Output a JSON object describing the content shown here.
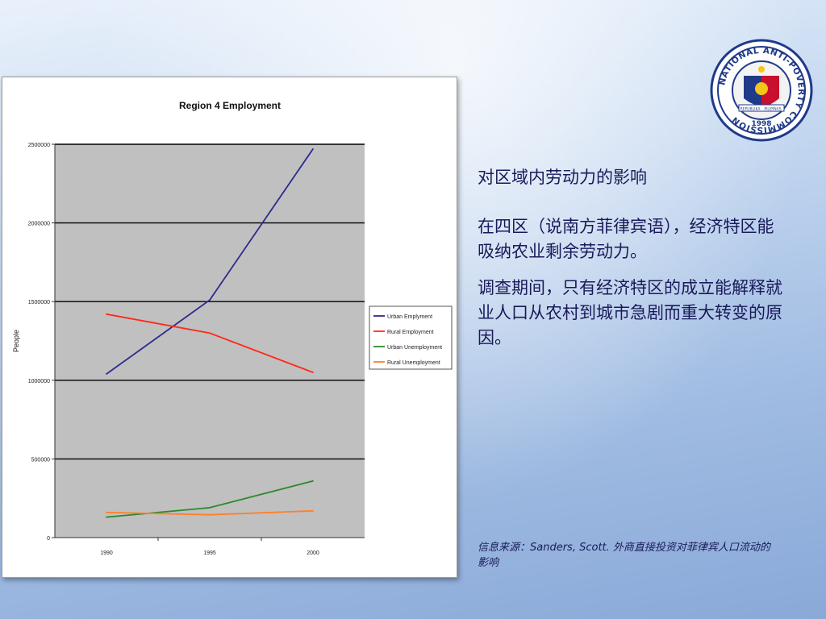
{
  "slide": {
    "heading": "对区域内劳动力的影响",
    "paragraphs": [
      "在四区（说南方菲律宾语），经济特区能吸纳农业剩余劳动力。",
      "调查期间，只有经济特区的成立能解释就业人口从农村到城市急剧而重大转变的原因。"
    ],
    "source": "信息来源：Sanders, Scott. 外商直接投资对菲律宾人口流动的影响"
  },
  "logo": {
    "ring_text": "NATIONAL ANTI-POVERTY COMMISSION",
    "year": "1998",
    "ribbon_left": "REPUBLIKA",
    "ribbon_right": "PILIPINAS"
  },
  "chart_data": {
    "type": "line",
    "title": "Region 4 Employment",
    "xlabel": "",
    "ylabel": "People",
    "categories": [
      "1990",
      "1995",
      "2000"
    ],
    "ylim": [
      0,
      2500000
    ],
    "yticks": [
      "0",
      "500000",
      "1000000",
      "1500000",
      "2000000",
      "2500000"
    ],
    "grid": true,
    "legend_position": "right",
    "series": [
      {
        "name": "Urban Emplyment",
        "color": "#2b2b8f",
        "values": [
          1040000,
          1510000,
          2470000
        ]
      },
      {
        "name": "Rural Employment",
        "color": "#ff2a1a",
        "values": [
          1420000,
          1300000,
          1050000
        ]
      },
      {
        "name": "Urban Unemployment",
        "color": "#2a8a2a",
        "values": [
          130000,
          190000,
          360000
        ]
      },
      {
        "name": "Rural Unemployment",
        "color": "#ff7f2a",
        "values": [
          160000,
          145000,
          170000
        ]
      }
    ]
  }
}
